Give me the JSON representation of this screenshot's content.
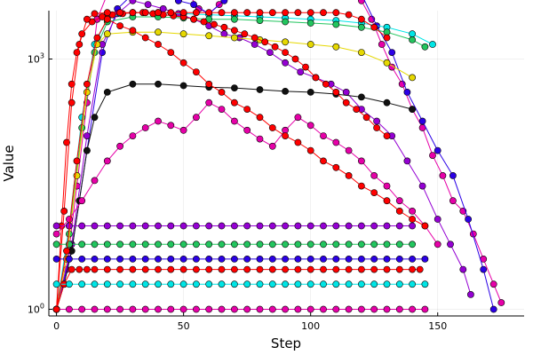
{
  "chart_data": {
    "type": "scatter",
    "style": "line with circle markers",
    "title": "",
    "xlabel": "Step",
    "ylabel": "Value",
    "xlim": [
      -3,
      184
    ],
    "ylim_log10": [
      -0.08,
      3.58
    ],
    "yscale": "log10",
    "grid": true,
    "legend": "none",
    "x_ticks": [
      {
        "value": 0,
        "label": "0"
      },
      {
        "value": 50,
        "label": "50"
      },
      {
        "value": 100,
        "label": "100"
      },
      {
        "value": 150,
        "label": "150"
      }
    ],
    "y_ticks": [
      {
        "value": 1,
        "label_base": "10",
        "label_exp": "0"
      },
      {
        "value": 1000,
        "label_base": "10",
        "label_exp": "3"
      }
    ],
    "colors": {
      "red": "#ff0000",
      "magenta": "#e600a8",
      "purple": "#9400d3",
      "blue": "#2b00e6",
      "green": "#22c55e",
      "cyan": "#00e5e5",
      "yellow": "#e6d800",
      "black": "#111111"
    },
    "series": [
      {
        "color_key": "magenta",
        "x": [
          0,
          4,
          8,
          12,
          16,
          20,
          24,
          28,
          30,
          32,
          34,
          36,
          40,
          44,
          48,
          52,
          56,
          60,
          64,
          68,
          72,
          76,
          80,
          82,
          84,
          88,
          92,
          96,
          100,
          104,
          108,
          112,
          116,
          120,
          124,
          128,
          132,
          136,
          140,
          144,
          148,
          152,
          156,
          160,
          164,
          168,
          172,
          175
        ],
        "y": [
          1,
          3,
          30,
          300,
          3000,
          6000,
          8000,
          7500,
          12000,
          15000,
          9000,
          6500,
          9000,
          7000,
          5000,
          6000,
          4000,
          3500,
          4500,
          7000,
          9000,
          12000,
          15000,
          17000,
          14000,
          9000,
          8000,
          12000,
          14000,
          10000,
          9000,
          14000,
          7000,
          5000,
          3000,
          1500,
          800,
          500,
          250,
          150,
          70,
          40,
          20,
          15,
          8,
          4,
          2,
          1.2
        ]
      },
      {
        "color_key": "blue",
        "x": [
          0,
          6,
          12,
          18,
          24,
          30,
          36,
          42,
          48,
          54,
          60,
          66,
          72,
          78,
          84,
          90,
          96,
          102,
          108,
          114,
          120,
          126,
          132,
          138,
          144,
          150,
          156,
          162,
          168,
          172
        ],
        "y": [
          1,
          5,
          80,
          1200,
          4000,
          6000,
          8000,
          6000,
          5000,
          4500,
          3500,
          5000,
          8000,
          12000,
          16000,
          9000,
          7000,
          11000,
          13000,
          9000,
          6000,
          2500,
          1200,
          400,
          180,
          80,
          40,
          12,
          3,
          1
        ]
      },
      {
        "color_key": "purple",
        "x": [
          0,
          6,
          12,
          18,
          24,
          30,
          36,
          42,
          48,
          54,
          60,
          66,
          72,
          78,
          84,
          90,
          96,
          102,
          108,
          114,
          120,
          126,
          132,
          138,
          144,
          150,
          155,
          160,
          163
        ],
        "y": [
          1,
          6,
          120,
          1500,
          3500,
          5000,
          4500,
          4000,
          3500,
          3000,
          2500,
          2000,
          1800,
          1500,
          1200,
          900,
          700,
          600,
          500,
          400,
          250,
          180,
          120,
          60,
          30,
          12,
          6,
          3,
          1.5
        ]
      },
      {
        "color_key": "cyan",
        "x": [
          0,
          5,
          10,
          15,
          20,
          25,
          30,
          40,
          50,
          60,
          70,
          80,
          90,
          100,
          110,
          120,
          130,
          140,
          148
        ],
        "y": [
          1,
          10,
          200,
          1500,
          3000,
          3500,
          3600,
          3600,
          3500,
          3400,
          3300,
          3200,
          3100,
          3000,
          2900,
          2700,
          2400,
          2000,
          1500
        ]
      },
      {
        "color_key": "green",
        "x": [
          0,
          5,
          10,
          15,
          20,
          30,
          40,
          50,
          60,
          70,
          80,
          90,
          100,
          110,
          120,
          130,
          140,
          145
        ],
        "y": [
          1,
          8,
          150,
          1200,
          2800,
          3200,
          3200,
          3100,
          3000,
          3000,
          2900,
          2800,
          2700,
          2600,
          2400,
          2100,
          1700,
          1400
        ]
      },
      {
        "color_key": "yellow",
        "x": [
          0,
          4,
          8,
          12,
          16,
          20,
          30,
          40,
          50,
          60,
          70,
          80,
          90,
          100,
          110,
          120,
          130,
          140
        ],
        "y": [
          1,
          4,
          40,
          400,
          1500,
          2000,
          2100,
          2100,
          2000,
          1900,
          1800,
          1700,
          1600,
          1500,
          1400,
          1200,
          900,
          600
        ]
      },
      {
        "color_key": "black",
        "x": [
          0,
          3,
          6,
          9,
          12,
          15,
          20,
          30,
          40,
          50,
          60,
          70,
          80,
          90,
          100,
          110,
          120,
          130,
          140
        ],
        "y": [
          1,
          2,
          5,
          20,
          80,
          200,
          400,
          500,
          500,
          480,
          460,
          450,
          430,
          410,
          400,
          380,
          350,
          300,
          250
        ]
      },
      {
        "color_key": "red",
        "x": [
          0,
          2,
          4,
          6,
          8,
          10,
          14,
          18,
          22,
          26,
          30,
          34,
          38,
          42,
          46,
          50,
          54,
          58,
          62,
          66,
          70,
          74,
          78,
          82,
          86,
          90,
          94,
          98,
          102,
          106,
          110,
          114,
          118,
          122,
          126,
          130
        ],
        "y": [
          1,
          10,
          100,
          500,
          1200,
          2000,
          2800,
          3200,
          3400,
          3500,
          3600,
          3600,
          3500,
          3400,
          3300,
          3200,
          3000,
          2800,
          2600,
          2400,
          2200,
          2000,
          1800,
          1600,
          1400,
          1200,
          1000,
          800,
          600,
          500,
          400,
          300,
          250,
          200,
          150,
          120
        ]
      },
      {
        "color_key": "red",
        "x": [
          0,
          3,
          6,
          9,
          12,
          15,
          20,
          25,
          30,
          35,
          40,
          45,
          50,
          55,
          60,
          65,
          70,
          75,
          80,
          85,
          90,
          95,
          100,
          105,
          110,
          115,
          120,
          125,
          130
        ],
        "y": [
          1,
          15,
          300,
          1500,
          3000,
          3500,
          3600,
          3600,
          3600,
          3600,
          3600,
          3600,
          3600,
          3600,
          3600,
          3600,
          3600,
          3600,
          3600,
          3600,
          3600,
          3600,
          3600,
          3600,
          3600,
          3400,
          3000,
          2400,
          1800
        ]
      },
      {
        "color_key": "red",
        "x": [
          0,
          3,
          6,
          9,
          12,
          15,
          20,
          25,
          30,
          35,
          40,
          45,
          50,
          55,
          60,
          65,
          70,
          75,
          80,
          85,
          90,
          95,
          100,
          105,
          110,
          115,
          120,
          125,
          130,
          135,
          140,
          143
        ],
        "y": [
          1,
          2,
          3,
          3,
          3,
          3,
          3,
          3,
          3,
          3,
          3,
          3,
          3,
          3,
          3,
          3,
          3,
          3,
          3,
          3,
          3,
          3,
          3,
          3,
          3,
          3,
          3,
          3,
          3,
          3,
          3,
          3
        ]
      },
      {
        "color_key": "magenta",
        "x": [
          0,
          5,
          10,
          15,
          20,
          25,
          30,
          35,
          40,
          45,
          50,
          55,
          60,
          65,
          70,
          75,
          80,
          85,
          90,
          95,
          100,
          105,
          110,
          115,
          120,
          125,
          130,
          135,
          140,
          145
        ],
        "y": [
          1,
          1,
          1,
          1,
          1,
          1,
          1,
          1,
          1,
          1,
          1,
          1,
          1,
          1,
          1,
          1,
          1,
          1,
          1,
          1,
          1,
          1,
          1,
          1,
          1,
          1,
          1,
          1,
          1,
          1
        ]
      },
      {
        "color_key": "cyan",
        "x": [
          0,
          5,
          10,
          15,
          20,
          25,
          30,
          35,
          40,
          45,
          50,
          55,
          60,
          65,
          70,
          75,
          80,
          85,
          90,
          95,
          100,
          105,
          110,
          115,
          120,
          125,
          130,
          135,
          140,
          145
        ],
        "y": [
          2,
          2,
          2,
          2,
          2,
          2,
          2,
          2,
          2,
          2,
          2,
          2,
          2,
          2,
          2,
          2,
          2,
          2,
          2,
          2,
          2,
          2,
          2,
          2,
          2,
          2,
          2,
          2,
          2,
          2
        ]
      },
      {
        "color_key": "blue",
        "x": [
          0,
          5,
          10,
          15,
          20,
          25,
          30,
          35,
          40,
          45,
          50,
          55,
          60,
          65,
          70,
          75,
          80,
          85,
          90,
          95,
          100,
          105,
          110,
          115,
          120,
          125,
          130,
          135,
          140,
          145
        ],
        "y": [
          4,
          4,
          4,
          4,
          4,
          4,
          4,
          4,
          4,
          4,
          4,
          4,
          4,
          4,
          4,
          4,
          4,
          4,
          4,
          4,
          4,
          4,
          4,
          4,
          4,
          4,
          4,
          4,
          4,
          4
        ]
      },
      {
        "color_key": "green",
        "x": [
          0,
          5,
          10,
          15,
          20,
          25,
          30,
          35,
          40,
          45,
          50,
          55,
          60,
          65,
          70,
          75,
          80,
          85,
          90,
          95,
          100,
          105,
          110,
          115,
          120,
          125,
          130,
          135,
          140
        ],
        "y": [
          6,
          6,
          6,
          6,
          6,
          6,
          6,
          6,
          6,
          6,
          6,
          6,
          6,
          6,
          6,
          6,
          6,
          6,
          6,
          6,
          6,
          6,
          6,
          6,
          6,
          6,
          6,
          6,
          6
        ]
      },
      {
        "color_key": "purple",
        "x": [
          0,
          5,
          10,
          15,
          20,
          25,
          30,
          35,
          40,
          45,
          50,
          55,
          60,
          65,
          70,
          75,
          80,
          85,
          90,
          95,
          100,
          105,
          110,
          115,
          120,
          125,
          130,
          135,
          140
        ],
        "y": [
          10,
          10,
          10,
          10,
          10,
          10,
          10,
          10,
          10,
          10,
          10,
          10,
          10,
          10,
          10,
          10,
          10,
          10,
          10,
          10,
          10,
          10,
          10,
          10,
          10,
          10,
          10,
          10,
          10
        ]
      },
      {
        "color_key": "magenta",
        "x": [
          0,
          5,
          10,
          15,
          20,
          25,
          30,
          35,
          40,
          45,
          50,
          55,
          60,
          65,
          70,
          75,
          80,
          85,
          90,
          95,
          100,
          105,
          110,
          115,
          120,
          125,
          130,
          135,
          140,
          145,
          150
        ],
        "y": [
          8,
          12,
          20,
          35,
          60,
          90,
          120,
          150,
          180,
          160,
          140,
          200,
          300,
          250,
          180,
          140,
          110,
          90,
          140,
          200,
          160,
          120,
          100,
          80,
          60,
          40,
          30,
          20,
          15,
          10,
          6
        ]
      },
      {
        "color_key": "red",
        "x": [
          0,
          4,
          8,
          12,
          16,
          20,
          25,
          30,
          35,
          40,
          45,
          50,
          55,
          60,
          65,
          70,
          75,
          80,
          85,
          90,
          95,
          100,
          105,
          110,
          115,
          120,
          125,
          130,
          135,
          140,
          145
        ],
        "y": [
          1,
          5,
          60,
          500,
          1800,
          3000,
          2500,
          2200,
          1800,
          1500,
          1200,
          900,
          700,
          500,
          400,
          300,
          250,
          200,
          150,
          120,
          100,
          80,
          60,
          50,
          40,
          30,
          25,
          20,
          15,
          12,
          10
        ]
      }
    ]
  }
}
